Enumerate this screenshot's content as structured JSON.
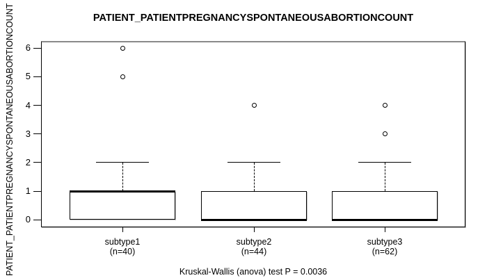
{
  "figure": {
    "title": "PATIENT_PATIENTPREGNANCYSPONTANEOUSABORTIONCOUNT",
    "ylabel": "PATIENT_PATIENTPREGNANCYSPONTANEOUSABORTIONCOUNT",
    "footnote": "Kruskal-Wallis (anova) test P = 0.0036"
  },
  "colors": {
    "foreground": "#000000",
    "background": "#ffffff"
  },
  "chart_data": {
    "type": "boxplot",
    "title": "PATIENT_PATIENTPREGNANCYSPONTANEOUSABORTIONCOUNT",
    "ylabel": "PATIENT_PATIENTPREGNANCYSPONTANEOUSABORTIONCOUNT",
    "xlabel": "",
    "y_ticks": [
      0,
      1,
      2,
      3,
      4,
      5,
      6
    ],
    "ylim": [
      -0.28,
      6.28
    ],
    "grid": false,
    "groups": [
      {
        "label": "subtype1",
        "sublabel": "(n=40)",
        "n": 40,
        "q1": 0,
        "median": 1,
        "q3": 1,
        "whisker_low": 0,
        "whisker_high": 2,
        "outliers": [
          5,
          6
        ]
      },
      {
        "label": "subtype2",
        "sublabel": "(n=44)",
        "n": 44,
        "q1": 0,
        "median": 0,
        "q3": 1,
        "whisker_low": 0,
        "whisker_high": 2,
        "outliers": [
          4
        ]
      },
      {
        "label": "subtype3",
        "sublabel": "(n=62)",
        "n": 62,
        "q1": 0,
        "median": 0,
        "q3": 1,
        "whisker_low": 0,
        "whisker_high": 2,
        "outliers": [
          3,
          4
        ]
      }
    ],
    "stat_test": {
      "name": "Kruskal-Wallis (anova) test",
      "p_value": 0.0036,
      "text": "Kruskal-Wallis (anova) test P = 0.0036"
    }
  }
}
